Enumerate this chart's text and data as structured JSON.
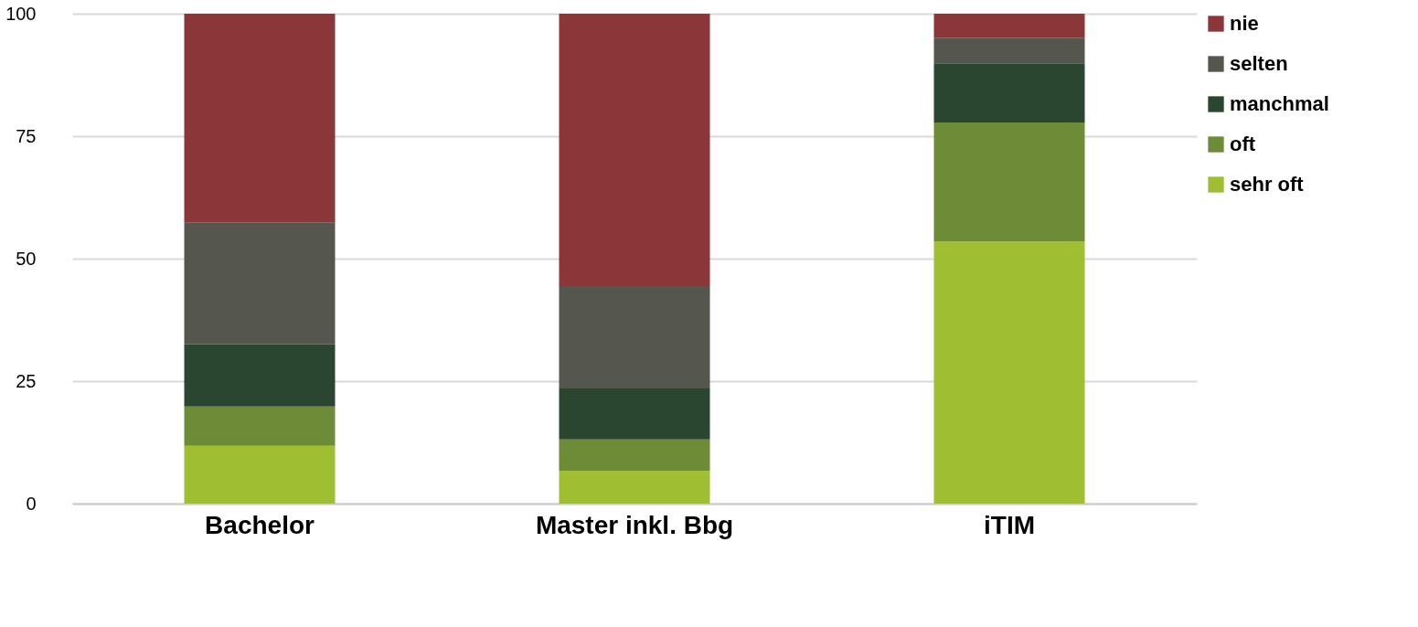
{
  "chart_data": {
    "type": "bar",
    "stacked": true,
    "categories": [
      "Bachelor",
      "Master inkl. Bbg",
      "iTIM"
    ],
    "series": [
      {
        "name": "sehr oft",
        "color": "#a0be32",
        "values": [
          11.8,
          6.7,
          53.5
        ]
      },
      {
        "name": "oft",
        "color": "#6e8c37",
        "values": [
          8.0,
          6.4,
          24.3
        ]
      },
      {
        "name": "manchmal",
        "color": "#2a4530",
        "values": [
          12.7,
          10.4,
          12.1
        ]
      },
      {
        "name": "selten",
        "color": "#55574e",
        "values": [
          24.8,
          20.9,
          5.1
        ]
      },
      {
        "name": "nie",
        "color": "#8b3739",
        "values": [
          42.7,
          55.6,
          5.0
        ]
      }
    ],
    "ylim": [
      0,
      100
    ],
    "yticks": [
      0,
      25,
      50,
      75,
      100
    ],
    "grid": "y",
    "legend": "top right"
  }
}
